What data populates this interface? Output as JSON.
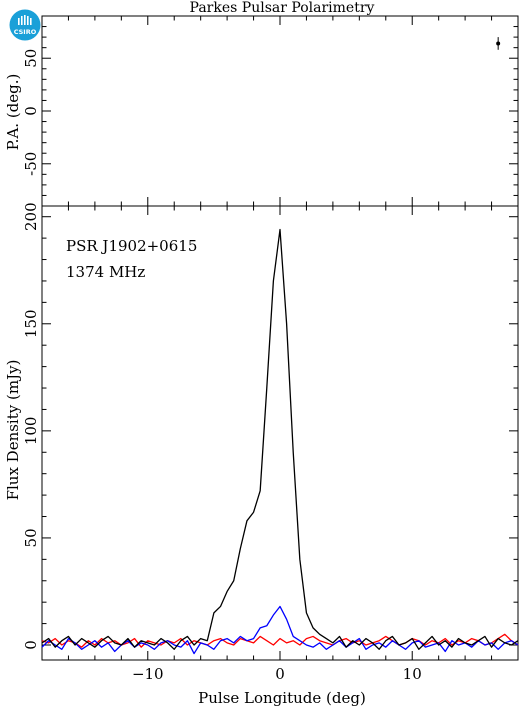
{
  "title": "Parkes Pulsar Polarimetry",
  "logo_text": "CSIRO",
  "colors": {
    "total": "#000000",
    "linear": "#ff0000",
    "circular": "#0000ff",
    "logo": "#1aa0d8"
  },
  "chart_data": [
    {
      "type": "scatter",
      "panel": "position-angle",
      "ylabel": "P.A. (deg.)",
      "xlim": [
        -18,
        18
      ],
      "ylim": [
        -90,
        90
      ],
      "yticks": [
        -50,
        0,
        50
      ],
      "xticks": [
        -10,
        0,
        10
      ],
      "points": [
        {
          "x": 16.5,
          "y": 64,
          "yerr": 6
        }
      ]
    },
    {
      "type": "line",
      "panel": "flux-profile",
      "annotations": [
        "PSR J1902+0615",
        "1374 MHz"
      ],
      "xlabel": "Pulse Longitude (deg)",
      "ylabel": "Flux Density (mJy)",
      "xlim": [
        -18,
        18
      ],
      "ylim": [
        -7,
        205
      ],
      "xticks": [
        -10,
        0,
        10
      ],
      "xtick_labels": [
        "−10",
        "0",
        "10"
      ],
      "yticks": [
        0,
        50,
        100,
        150,
        200
      ],
      "ytick_labels": [
        "0",
        "50",
        "100",
        "150",
        "200"
      ],
      "x": [
        -18,
        -17.5,
        -17,
        -16.5,
        -16,
        -15.5,
        -15,
        -14.5,
        -14,
        -13.5,
        -13,
        -12.5,
        -12,
        -11.5,
        -11,
        -10.5,
        -10,
        -9.5,
        -9,
        -8.5,
        -8,
        -7.5,
        -7,
        -6.5,
        -6,
        -5.5,
        -5,
        -4.5,
        -4,
        -3.5,
        -3,
        -2.5,
        -2,
        -1.5,
        -1,
        -0.5,
        0,
        0.5,
        1,
        1.5,
        2,
        2.5,
        3,
        3.5,
        4,
        4.5,
        5,
        5.5,
        6,
        6.5,
        7,
        7.5,
        8,
        8.5,
        9,
        9.5,
        10,
        10.5,
        11,
        11.5,
        12,
        12.5,
        13,
        13.5,
        14,
        14.5,
        15,
        15.5,
        16,
        16.5,
        17,
        17.5,
        18
      ],
      "series": [
        {
          "name": "",
          "color_key": "total",
          "values": [
            1,
            3,
            -1,
            2,
            4,
            0,
            3,
            1,
            -1,
            2,
            4,
            1,
            0,
            3,
            -1,
            2,
            1,
            0,
            3,
            1,
            -2,
            2,
            4,
            0,
            3,
            2,
            15,
            18,
            25,
            30,
            45,
            58,
            62,
            72,
            120,
            170,
            194,
            150,
            90,
            40,
            15,
            8,
            5,
            3,
            1,
            4,
            -1,
            2,
            0,
            3,
            1,
            -2,
            2,
            4,
            0,
            1,
            3,
            -2,
            1,
            4,
            0,
            2,
            -1,
            3,
            1,
            0,
            2,
            4,
            -1,
            3,
            1,
            0,
            2
          ]
        },
        {
          "name": "",
          "color_key": "linear",
          "values": [
            2,
            1,
            3,
            0,
            2,
            1,
            -1,
            2,
            0,
            3,
            1,
            2,
            0,
            1,
            3,
            -1,
            2,
            1,
            0,
            2,
            1,
            3,
            0,
            2,
            1,
            0,
            2,
            3,
            1,
            0,
            3,
            2,
            1,
            4,
            2,
            0,
            3,
            1,
            2,
            0,
            3,
            4,
            2,
            1,
            0,
            2,
            3,
            1,
            2,
            0,
            1,
            2,
            4,
            2,
            0,
            1,
            3,
            2,
            0,
            2,
            1,
            3,
            0,
            2,
            1,
            3,
            2,
            0,
            1,
            3,
            5,
            2,
            0
          ]
        },
        {
          "name": "",
          "color_key": "circular",
          "values": [
            -1,
            2,
            0,
            -2,
            3,
            1,
            -2,
            0,
            2,
            -1,
            1,
            -3,
            0,
            2,
            -1,
            1,
            0,
            -2,
            1,
            2,
            0,
            -1,
            2,
            -4,
            1,
            0,
            -2,
            2,
            3,
            1,
            4,
            2,
            3,
            8,
            9,
            14,
            18,
            12,
            4,
            2,
            0,
            -1,
            1,
            -2,
            0,
            2,
            -1,
            1,
            3,
            -2,
            0,
            1,
            -1,
            2,
            0,
            -2,
            1,
            2,
            -1,
            0,
            1,
            -3,
            2,
            0,
            1,
            -1,
            2,
            0,
            1,
            -2,
            1,
            2,
            0
          ]
        }
      ]
    }
  ]
}
